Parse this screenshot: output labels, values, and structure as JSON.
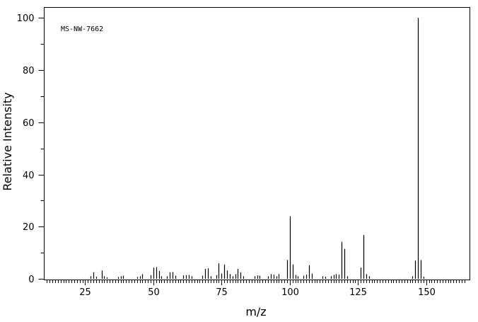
{
  "chart_data": {
    "type": "bar",
    "subtype": "mass-spectrum-stick",
    "annotation": "MS-NW-7662",
    "xlabel": "m/z",
    "ylabel": "Relative Intensity",
    "xlim": [
      10,
      166
    ],
    "ylim": [
      0,
      104
    ],
    "x_major_ticks": [
      25,
      50,
      75,
      100,
      125,
      150
    ],
    "x_minor_step": 1,
    "y_major_ticks": [
      0,
      20,
      40,
      60,
      80,
      100
    ],
    "y_minor_step": 10,
    "grid": false,
    "peaks": [
      {
        "x": 27,
        "y": 1.0
      },
      {
        "x": 28,
        "y": 2.5
      },
      {
        "x": 29,
        "y": 0.8
      },
      {
        "x": 31,
        "y": 3.2
      },
      {
        "x": 32,
        "y": 1.0
      },
      {
        "x": 33,
        "y": 0.6
      },
      {
        "x": 37,
        "y": 0.7
      },
      {
        "x": 38,
        "y": 1.0
      },
      {
        "x": 39,
        "y": 1.2
      },
      {
        "x": 44,
        "y": 0.7
      },
      {
        "x": 45,
        "y": 1.0
      },
      {
        "x": 46,
        "y": 1.8
      },
      {
        "x": 49,
        "y": 1.4
      },
      {
        "x": 50,
        "y": 4.3
      },
      {
        "x": 51,
        "y": 4.5
      },
      {
        "x": 52,
        "y": 3.0
      },
      {
        "x": 53,
        "y": 1.0
      },
      {
        "x": 55,
        "y": 1.0
      },
      {
        "x": 56,
        "y": 2.5
      },
      {
        "x": 57,
        "y": 2.6
      },
      {
        "x": 58,
        "y": 1.2
      },
      {
        "x": 61,
        "y": 1.3
      },
      {
        "x": 62,
        "y": 1.4
      },
      {
        "x": 63,
        "y": 1.5
      },
      {
        "x": 64,
        "y": 1.0
      },
      {
        "x": 68,
        "y": 1.2
      },
      {
        "x": 69,
        "y": 3.8
      },
      {
        "x": 70,
        "y": 4.0
      },
      {
        "x": 71,
        "y": 1.0
      },
      {
        "x": 73,
        "y": 1.4
      },
      {
        "x": 74,
        "y": 6.0
      },
      {
        "x": 75,
        "y": 2.0
      },
      {
        "x": 76,
        "y": 5.5
      },
      {
        "x": 77,
        "y": 3.2
      },
      {
        "x": 78,
        "y": 1.8
      },
      {
        "x": 79,
        "y": 1.0
      },
      {
        "x": 80,
        "y": 1.8
      },
      {
        "x": 81,
        "y": 3.8
      },
      {
        "x": 82,
        "y": 2.5
      },
      {
        "x": 83,
        "y": 1.0
      },
      {
        "x": 87,
        "y": 1.0
      },
      {
        "x": 88,
        "y": 1.3
      },
      {
        "x": 89,
        "y": 1.2
      },
      {
        "x": 92,
        "y": 1.0
      },
      {
        "x": 93,
        "y": 1.8
      },
      {
        "x": 94,
        "y": 1.6
      },
      {
        "x": 95,
        "y": 1.0
      },
      {
        "x": 96,
        "y": 1.8
      },
      {
        "x": 99,
        "y": 7.2
      },
      {
        "x": 100,
        "y": 24.0
      },
      {
        "x": 101,
        "y": 5.5
      },
      {
        "x": 102,
        "y": 1.5
      },
      {
        "x": 103,
        "y": 1.0
      },
      {
        "x": 105,
        "y": 1.2
      },
      {
        "x": 106,
        "y": 1.6
      },
      {
        "x": 107,
        "y": 5.2
      },
      {
        "x": 108,
        "y": 2.0
      },
      {
        "x": 112,
        "y": 1.0
      },
      {
        "x": 113,
        "y": 0.8
      },
      {
        "x": 115,
        "y": 1.0
      },
      {
        "x": 116,
        "y": 1.5
      },
      {
        "x": 117,
        "y": 1.8
      },
      {
        "x": 118,
        "y": 1.6
      },
      {
        "x": 119,
        "y": 14.2
      },
      {
        "x": 120,
        "y": 11.5
      },
      {
        "x": 121,
        "y": 1.0
      },
      {
        "x": 126,
        "y": 4.3
      },
      {
        "x": 127,
        "y": 16.8
      },
      {
        "x": 128,
        "y": 1.8
      },
      {
        "x": 129,
        "y": 1.0
      },
      {
        "x": 145,
        "y": 1.0
      },
      {
        "x": 146,
        "y": 7.0
      },
      {
        "x": 147,
        "y": 100.0
      },
      {
        "x": 148,
        "y": 7.2
      },
      {
        "x": 149,
        "y": 0.8
      }
    ]
  }
}
